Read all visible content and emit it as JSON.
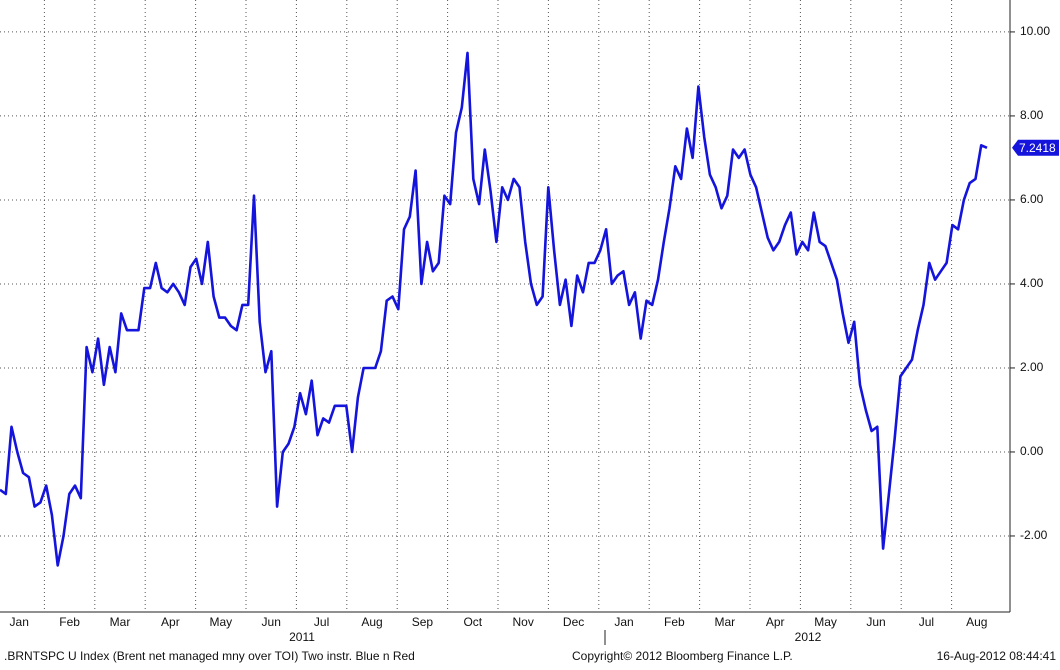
{
  "chart_data": {
    "type": "line",
    "months": [
      "Jan",
      "Feb",
      "Mar",
      "Apr",
      "May",
      "Jun",
      "Jul",
      "Aug",
      "Sep",
      "Oct",
      "Nov",
      "Dec",
      "Jan",
      "Feb",
      "Mar",
      "Apr",
      "May",
      "Jun",
      "Jul",
      "Aug"
    ],
    "years": [
      "2011",
      "2012"
    ],
    "series": [
      {
        "color": "#1414dc",
        "values": [
          -0.9,
          -1.0,
          0.6,
          0.0,
          -0.5,
          -0.6,
          -1.3,
          -1.2,
          -0.8,
          -1.5,
          -2.7,
          -2.0,
          -1.0,
          -0.8,
          -1.1,
          2.5,
          1.9,
          2.7,
          1.6,
          2.5,
          1.9,
          3.3,
          2.9,
          2.9,
          2.9,
          3.9,
          3.9,
          4.5,
          3.9,
          3.8,
          4.0,
          3.8,
          3.5,
          4.4,
          4.6,
          4.0,
          5.0,
          3.7,
          3.2,
          3.2,
          3.0,
          2.9,
          3.5,
          3.5,
          6.1,
          3.1,
          1.9,
          2.4,
          -1.3,
          0.0,
          0.2,
          0.6,
          1.4,
          0.9,
          1.7,
          0.4,
          0.8,
          0.7,
          1.1,
          1.1,
          1.1,
          0.0,
          1.3,
          2.0,
          2.0,
          2.0,
          2.4,
          3.6,
          3.7,
          3.4,
          5.3,
          5.6,
          6.7,
          4.0,
          5.0,
          4.3,
          4.5,
          6.1,
          5.9,
          7.6,
          8.2,
          9.5,
          6.5,
          5.9,
          7.2,
          6.2,
          5.0,
          6.3,
          6.0,
          6.5,
          6.3,
          5.0,
          4.0,
          3.5,
          3.7,
          6.3,
          4.8,
          3.5,
          4.1,
          3.0,
          4.2,
          3.8,
          4.5,
          4.5,
          4.8,
          5.3,
          4.0,
          4.2,
          4.3,
          3.5,
          3.8,
          2.7,
          3.6,
          3.5,
          4.1,
          5.0,
          5.8,
          6.8,
          6.5,
          7.7,
          7.0,
          8.7,
          7.5,
          6.6,
          6.3,
          5.8,
          6.1,
          7.2,
          7.0,
          7.2,
          6.6,
          6.3,
          5.7,
          5.1,
          4.8,
          5.0,
          5.4,
          5.7,
          4.7,
          5.0,
          4.8,
          5.7,
          5.0,
          4.9,
          4.5,
          4.1,
          3.3,
          2.6,
          3.1,
          1.6,
          1.0,
          0.5,
          0.6,
          -2.3,
          -1.0,
          0.3,
          1.8,
          2.0,
          2.2,
          2.9,
          3.5,
          4.5,
          4.1,
          4.3,
          4.5,
          5.4,
          5.3,
          6.0,
          6.4,
          6.5,
          7.3,
          7.2418
        ]
      }
    ],
    "ylim": [
      -3.81,
      10.76
    ],
    "yticks": [
      {
        "value": -2,
        "label": "-2.00"
      },
      {
        "value": 0,
        "label": "0.00"
      },
      {
        "value": 2,
        "label": "2.00"
      },
      {
        "value": 4,
        "label": "4.00"
      },
      {
        "value": 6,
        "label": "6.00"
      },
      {
        "value": 8,
        "label": "8.00"
      },
      {
        "value": 10,
        "label": "10.00"
      }
    ],
    "grid": true,
    "footer": {
      "index": ".BRNTSPC U Index (Brent net managed mny over TOI) Two instr. Blue n Red",
      "copyright": "Copyright© 2012 Bloomberg Finance L.P.",
      "timestamp": "16-Aug-2012 08:44:41"
    }
  }
}
